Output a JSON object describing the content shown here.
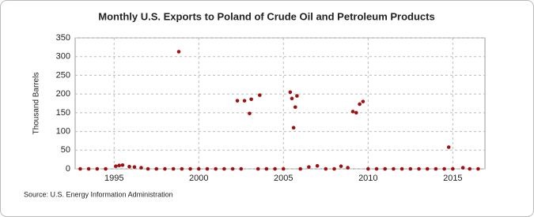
{
  "chart_data": {
    "type": "scatter",
    "title": "Monthly U.S. Exports to Poland of Crude Oil and Petroleum Products",
    "y_label": "Thousand Barrels",
    "source": "Source: U.S. Energy Information Administration",
    "x": [
      1993.0,
      1993.5,
      1994.0,
      1994.5,
      1995.1,
      1995.3,
      1995.5,
      1995.9,
      1996.2,
      1996.6,
      1997.0,
      1997.5,
      1998.0,
      1998.5,
      1998.82,
      1999.0,
      1999.5,
      2000.0,
      2000.5,
      2001.0,
      2001.5,
      2002.0,
      2002.28,
      2002.5,
      2002.7,
      2003.0,
      2003.1,
      2003.5,
      2003.6,
      2004.0,
      2004.5,
      2005.0,
      2005.4,
      2005.5,
      2005.6,
      2005.7,
      2005.8,
      2006.0,
      2006.5,
      2007.0,
      2007.5,
      2008.0,
      2008.4,
      2008.8,
      2009.1,
      2009.3,
      2009.5,
      2009.7,
      2010.0,
      2010.5,
      2011.0,
      2011.5,
      2012.0,
      2012.5,
      2013.0,
      2013.5,
      2014.0,
      2014.5,
      2014.76,
      2015.0,
      2015.6,
      2016.0,
      2016.5
    ],
    "values": [
      0,
      0,
      0,
      0,
      7,
      9,
      10,
      6,
      5,
      3,
      0,
      0,
      0,
      0,
      313,
      0,
      0,
      0,
      0,
      0,
      0,
      0,
      182,
      0,
      182,
      148,
      186,
      0,
      197,
      0,
      0,
      0,
      205,
      188,
      110,
      165,
      195,
      0,
      5,
      8,
      0,
      0,
      7,
      3,
      153,
      150,
      173,
      180,
      0,
      0,
      0,
      0,
      0,
      0,
      0,
      0,
      0,
      0,
      58,
      0,
      3,
      0,
      0
    ],
    "color": "#a01010",
    "xlim": [
      1992.7,
      2016.9
    ],
    "xticks": [
      1995,
      2000,
      2005,
      2010,
      2015
    ],
    "ylim": [
      0,
      350
    ],
    "yticks": [
      0,
      50,
      100,
      150,
      200,
      250,
      300,
      350
    ],
    "grid": true
  }
}
